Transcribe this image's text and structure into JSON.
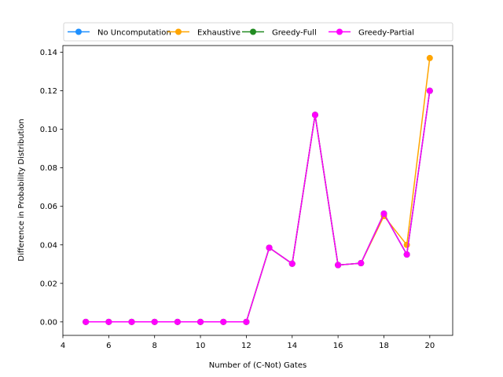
{
  "chart_data": {
    "type": "line",
    "title": "",
    "xlabel": "Number of (C-Not) Gates",
    "ylabel": "Difference in Probability Distribution",
    "xlim": [
      4,
      21
    ],
    "ylim": [
      -0.007,
      0.1435
    ],
    "xticks": [
      4,
      6,
      8,
      10,
      12,
      14,
      16,
      18,
      20
    ],
    "yticks": [
      0.0,
      0.02,
      0.04,
      0.06,
      0.08,
      0.1,
      0.12,
      0.14
    ],
    "ytick_format": 2,
    "grid": false,
    "legend_position": "top",
    "x": [
      5,
      6,
      7,
      8,
      9,
      10,
      11,
      12,
      13,
      14,
      15,
      16,
      17,
      18,
      19,
      20
    ],
    "series": [
      {
        "name": "No Uncomputation",
        "color": "#1e90ff",
        "values": [
          0,
          0,
          0,
          0,
          0,
          0,
          0,
          0,
          0.0385,
          0.0302,
          0.1075,
          0.0295,
          0.0305,
          0.0562,
          0.035,
          0.12
        ]
      },
      {
        "name": "Exhaustive",
        "color": "#ffa500",
        "values": [
          0,
          0,
          0,
          0,
          0,
          0,
          0,
          0,
          0.0385,
          0.0302,
          0.1075,
          0.0295,
          0.0305,
          0.055,
          0.04,
          0.137
        ]
      },
      {
        "name": "Greedy-Full",
        "color": "#228b22",
        "values": [
          0,
          0,
          0,
          0,
          0,
          0,
          0,
          0,
          0.0385,
          0.0302,
          0.1075,
          0.0295,
          0.0305,
          0.0562,
          0.035,
          0.12
        ]
      },
      {
        "name": "Greedy-Partial",
        "color": "#ff00ff",
        "values": [
          0,
          0,
          0,
          0,
          0,
          0,
          0,
          0,
          0.0385,
          0.0302,
          0.1075,
          0.0295,
          0.0305,
          0.0562,
          0.035,
          0.12
        ]
      }
    ]
  }
}
